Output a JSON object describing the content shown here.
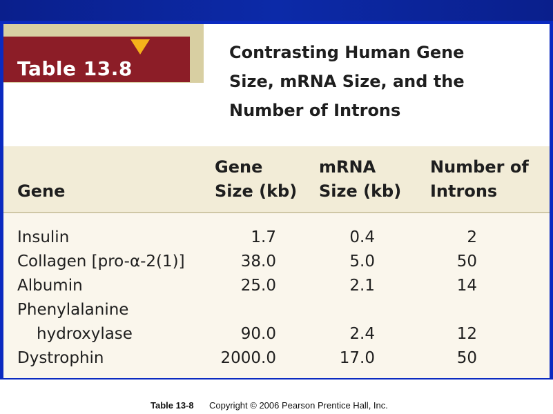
{
  "table_label": "Table 13.8",
  "title_lines": [
    "Contrasting Human Gene",
    "Size, mRNA Size, and the",
    "Number of Introns"
  ],
  "headers": {
    "gene": "Gene",
    "gene_size": [
      "Gene",
      "Size (kb)"
    ],
    "mrna_size": [
      "mRNA",
      "Size (kb)"
    ],
    "introns": [
      "Number of",
      "Introns"
    ]
  },
  "rows": [
    {
      "gene": "Insulin",
      "size": "1.7",
      "mrna": "0.4",
      "introns": "2"
    },
    {
      "gene": "Collagen [pro-α-2(1)]",
      "size": "38.0",
      "mrna": "5.0",
      "introns": "50"
    },
    {
      "gene": "Albumin",
      "size": "25.0",
      "mrna": "2.1",
      "introns": "14"
    },
    {
      "gene": "Phenylalanine",
      "size": "",
      "mrna": "",
      "introns": ""
    },
    {
      "gene": "hydroxylase",
      "size": "90.0",
      "mrna": "2.4",
      "introns": "12"
    },
    {
      "gene": "Dystrophin",
      "size": "2000.0",
      "mrna": "17.0",
      "introns": "50"
    }
  ],
  "caption": {
    "label": "Table 13-8",
    "copyright": "Copyright © 2006 Pearson Prentice Hall, Inc."
  },
  "colors": {
    "frame_blue": "#0b2ac0",
    "tag_red": "#8c1d27",
    "tag_tan": "#d8cfa2",
    "triangle_gold": "#f5b21a",
    "table_bg": "#faf6ec"
  }
}
